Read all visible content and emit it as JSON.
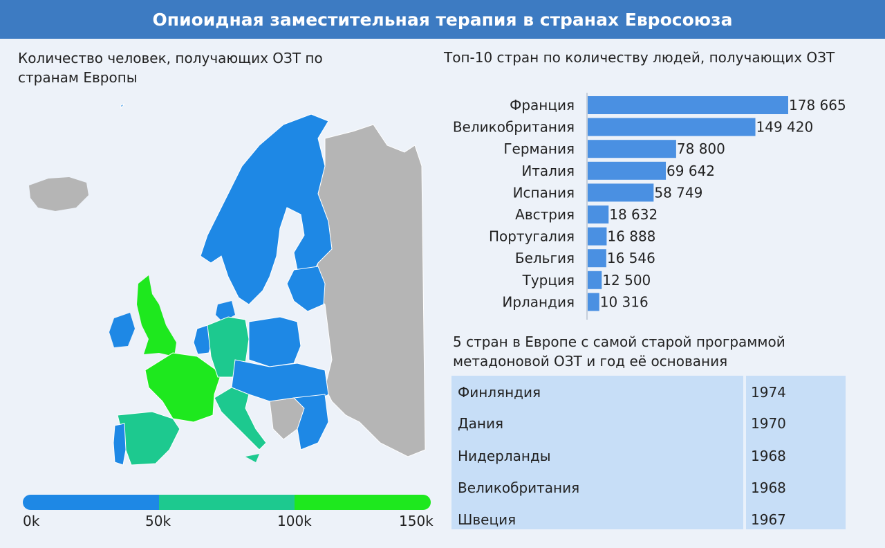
{
  "header": {
    "title": "Опиоидная заместительная терапия в странах Евросоюза"
  },
  "map": {
    "title": "Количество человек, получающих ОЗТ по странам Европы",
    "legend": {
      "ticks": [
        "0k",
        "50k",
        "100k",
        "150k"
      ],
      "colors": [
        "#1e88e5",
        "#1dc98f",
        "#1ee81e"
      ]
    },
    "colors": {
      "low": "#1e88e5",
      "mid": "#1dc98f",
      "high": "#1ee81e",
      "nodata": "#b5b5b5"
    }
  },
  "bars": {
    "title": "Топ-10 стран по количеству людей, получающих ОЗТ",
    "value_labels": [
      "178 665",
      "149 420",
      "78 800",
      "69 642",
      "58 749",
      "18 632",
      "16 888",
      "16 546",
      "12 500",
      "10 316"
    ]
  },
  "chart_data": [
    {
      "type": "bar",
      "orientation": "horizontal",
      "title": "Топ-10 стран по количеству людей, получающих ОЗТ",
      "categories": [
        "Франция",
        "Великобритания",
        "Германия",
        "Италия",
        "Испания",
        "Австрия",
        "Португалия",
        "Бельгия",
        "Турция",
        "Ирландия"
      ],
      "values": [
        178665,
        149420,
        78800,
        69642,
        58749,
        18632,
        16888,
        16546,
        12500,
        10316
      ],
      "color": "#4a90e2",
      "xlim": [
        0,
        178665
      ],
      "grid": false
    },
    {
      "type": "table",
      "title": "5 стран в Европе с самой старой программой метадоновой ОЗТ и год её основания",
      "rows": [
        [
          "Финляндия",
          "1974"
        ],
        [
          "Дания",
          "1970"
        ],
        [
          "Нидерланды",
          "1968"
        ],
        [
          "Великобритания",
          "1968"
        ],
        [
          "Швеция",
          "1967"
        ]
      ]
    }
  ]
}
